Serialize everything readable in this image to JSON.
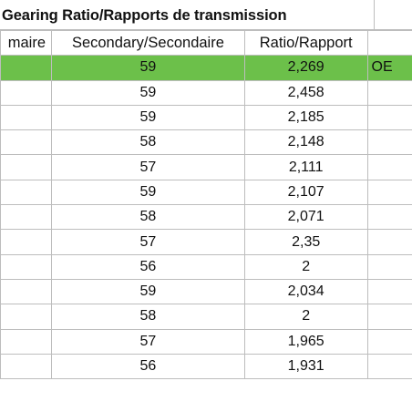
{
  "title": "Gearing Ratio/Rapports de transmission",
  "headers": {
    "primary": "maire",
    "secondary": "Secondary/Secondaire",
    "ratio": "Ratio/Rapport"
  },
  "rows": [
    {
      "secondary": "59",
      "ratio": "2,269",
      "note": "OE",
      "highlight": true
    },
    {
      "secondary": "59",
      "ratio": "2,458",
      "note": ""
    },
    {
      "secondary": "59",
      "ratio": "2,185",
      "note": ""
    },
    {
      "secondary": "58",
      "ratio": "2,148",
      "note": ""
    },
    {
      "secondary": "57",
      "ratio": "2,111",
      "note": ""
    },
    {
      "secondary": "59",
      "ratio": "2,107",
      "note": ""
    },
    {
      "secondary": "58",
      "ratio": "2,071",
      "note": ""
    },
    {
      "secondary": "57",
      "ratio": "2,35",
      "note": ""
    },
    {
      "secondary": "56",
      "ratio": "2",
      "note": ""
    },
    {
      "secondary": "59",
      "ratio": "2,034",
      "note": ""
    },
    {
      "secondary": "58",
      "ratio": "2",
      "note": ""
    },
    {
      "secondary": "57",
      "ratio": "1,965",
      "note": ""
    },
    {
      "secondary": "56",
      "ratio": "1,931",
      "note": ""
    }
  ],
  "colors": {
    "highlight": "#6cc04a",
    "grid": "#bdbdbd"
  }
}
